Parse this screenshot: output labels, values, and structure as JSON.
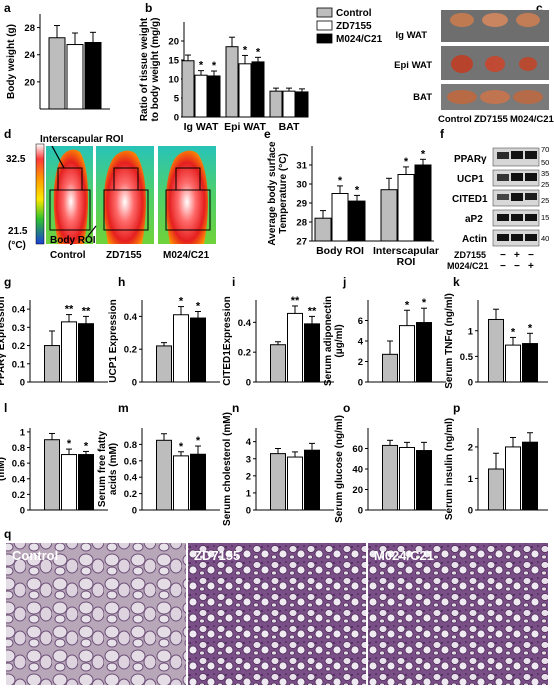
{
  "figure": {
    "panel_letters": [
      "a",
      "b",
      "c",
      "d",
      "e",
      "f",
      "g",
      "h",
      "i",
      "j",
      "k",
      "l",
      "m",
      "n",
      "o",
      "p",
      "q"
    ],
    "legend": [
      {
        "label": "Control",
        "color": "#bdbdbd"
      },
      {
        "label": "ZD7155",
        "color": "#ffffff"
      },
      {
        "label": "M024/C21",
        "color": "#000000"
      }
    ]
  },
  "panel_c": {
    "rows": [
      "Ig WAT",
      "Epi WAT",
      "BAT"
    ],
    "columns": [
      "Control",
      "ZD7155",
      "M024/C21"
    ]
  },
  "panel_d": {
    "labels": {
      "interscapular": "Interscapular ROI",
      "body": "Body ROI"
    },
    "scale_max": "32.5",
    "scale_min": "21.5",
    "scale_unit": "(°C)",
    "columns": [
      "Control",
      "ZD7155",
      "M024/C21"
    ]
  },
  "panel_f": {
    "bands": [
      "PPARγ",
      "UCP1",
      "CITED1",
      "aP2",
      "Actin"
    ],
    "markers": [
      "70",
      "50",
      "35",
      "25",
      "25",
      "15",
      "40"
    ],
    "conditions": [
      {
        "name": "ZD7155",
        "signs": [
          "−",
          "+",
          "−"
        ]
      },
      {
        "name": "M024/C21",
        "signs": [
          "−",
          "−",
          "+"
        ]
      }
    ]
  },
  "panel_q": {
    "labels": [
      "Control",
      "ZD7155",
      "M024/C21"
    ]
  },
  "chart_data": [
    {
      "id": "a",
      "type": "bar",
      "ylabel": "Body weight (g)",
      "ylim": [
        16,
        30
      ],
      "yticks": [
        20,
        24,
        28
      ],
      "series": [
        {
          "name": "Control",
          "values": [
            26.5
          ],
          "errors": [
            1.8
          ]
        },
        {
          "name": "ZD7155",
          "values": [
            25.5
          ],
          "errors": [
            1.7
          ]
        },
        {
          "name": "M024/C21",
          "values": [
            25.8
          ],
          "errors": [
            1.5
          ]
        }
      ],
      "stars": [
        "",
        "",
        ""
      ]
    },
    {
      "id": "b",
      "type": "bar",
      "ylabel": "Ratio of tissue weight to body weight (mg/g)",
      "ylim": [
        0,
        25
      ],
      "yticks": [
        0,
        5,
        10,
        15,
        20
      ],
      "categories": [
        "Ig WAT",
        "Epi WAT",
        "BAT"
      ],
      "series": [
        {
          "name": "Control",
          "values": [
            14.8,
            18.5,
            6.8
          ],
          "errors": [
            1.5,
            2.5,
            0.8
          ]
        },
        {
          "name": "ZD7155",
          "values": [
            11.0,
            14.0,
            6.8
          ],
          "errors": [
            1.2,
            2.2,
            0.8
          ]
        },
        {
          "name": "M024/C21",
          "values": [
            10.8,
            14.5,
            6.6
          ],
          "errors": [
            1.3,
            1.2,
            0.8
          ]
        }
      ],
      "stars": [
        [
          "",
          "*",
          "*"
        ],
        [
          "",
          "*",
          "*"
        ],
        [
          "",
          "",
          ""
        ]
      ]
    },
    {
      "id": "e",
      "type": "bar",
      "ylabel": "Average body surface Temperature (°C)",
      "ylim": [
        27,
        32
      ],
      "yticks": [
        27,
        28,
        29,
        30,
        31
      ],
      "categories": [
        "Body ROI",
        "Interscapular ROI"
      ],
      "series": [
        {
          "name": "Control",
          "values": [
            28.2,
            29.7
          ],
          "errors": [
            0.4,
            0.6
          ]
        },
        {
          "name": "ZD7155",
          "values": [
            29.5,
            30.5
          ],
          "errors": [
            0.4,
            0.4
          ]
        },
        {
          "name": "M024/C21",
          "values": [
            29.1,
            31.0
          ],
          "errors": [
            0.3,
            0.3
          ]
        }
      ],
      "stars": [
        [
          "",
          "*",
          "*"
        ],
        [
          "",
          "*",
          "*"
        ]
      ]
    },
    {
      "id": "g",
      "type": "bar",
      "ylabel": "PPARγ Expression",
      "ylim": [
        0,
        0.45
      ],
      "yticks": [
        0,
        0.1,
        0.2,
        0.3,
        0.4
      ],
      "series": [
        {
          "name": "Control",
          "values": [
            0.2
          ],
          "errors": [
            0.08
          ]
        },
        {
          "name": "ZD7155",
          "values": [
            0.33
          ],
          "errors": [
            0.04
          ]
        },
        {
          "name": "M024/C21",
          "values": [
            0.32
          ],
          "errors": [
            0.04
          ]
        }
      ],
      "stars": [
        "",
        "**",
        "**"
      ]
    },
    {
      "id": "h",
      "type": "bar",
      "ylabel": "UCP1 Expression",
      "ylim": [
        0,
        0.5
      ],
      "yticks": [
        0,
        0.2,
        0.4
      ],
      "series": [
        {
          "name": "Control",
          "values": [
            0.22
          ],
          "errors": [
            0.02
          ]
        },
        {
          "name": "ZD7155",
          "values": [
            0.41
          ],
          "errors": [
            0.05
          ]
        },
        {
          "name": "M024/C21",
          "values": [
            0.39
          ],
          "errors": [
            0.04
          ]
        }
      ],
      "stars": [
        "",
        "*",
        "*"
      ]
    },
    {
      "id": "i",
      "type": "bar",
      "ylabel": "CITED1Expression",
      "ylim": [
        0,
        0.55
      ],
      "yticks": [
        0,
        0.2,
        0.4
      ],
      "series": [
        {
          "name": "Control",
          "values": [
            0.25
          ],
          "errors": [
            0.02
          ]
        },
        {
          "name": "ZD7155",
          "values": [
            0.46
          ],
          "errors": [
            0.05
          ]
        },
        {
          "name": "M024/C21",
          "values": [
            0.39
          ],
          "errors": [
            0.05
          ]
        }
      ],
      "stars": [
        "",
        "**",
        "**"
      ]
    },
    {
      "id": "j",
      "type": "bar",
      "ylabel": "Serum adiponectin (μg/ml)",
      "ylim": [
        0,
        8
      ],
      "yticks": [
        0,
        2,
        4,
        6
      ],
      "series": [
        {
          "name": "Control",
          "values": [
            2.7
          ],
          "errors": [
            1.3
          ]
        },
        {
          "name": "ZD7155",
          "values": [
            5.5
          ],
          "errors": [
            1.5
          ]
        },
        {
          "name": "M024/C21",
          "values": [
            5.8
          ],
          "errors": [
            1.4
          ]
        }
      ],
      "stars": [
        "",
        "*",
        "*"
      ]
    },
    {
      "id": "k",
      "type": "bar",
      "ylabel": "Serum TNFα (ng/ml)",
      "ylim": [
        0,
        1.6
      ],
      "yticks": [
        0,
        0.5,
        1
      ],
      "series": [
        {
          "name": "Control",
          "values": [
            1.22
          ],
          "errors": [
            0.2
          ]
        },
        {
          "name": "ZD7155",
          "values": [
            0.72
          ],
          "errors": [
            0.15
          ]
        },
        {
          "name": "M024/C21",
          "values": [
            0.75
          ],
          "errors": [
            0.2
          ]
        }
      ],
      "stars": [
        "",
        "*",
        "*"
      ]
    },
    {
      "id": "l",
      "type": "bar",
      "ylabel": "Serum triglyceride (mM)",
      "ylim": [
        0,
        1.05
      ],
      "yticks": [
        0,
        0.2,
        0.4,
        0.6,
        0.8,
        1
      ],
      "series": [
        {
          "name": "Control",
          "values": [
            0.9
          ],
          "errors": [
            0.08
          ]
        },
        {
          "name": "ZD7155",
          "values": [
            0.71
          ],
          "errors": [
            0.07
          ]
        },
        {
          "name": "M024/C21",
          "values": [
            0.71
          ],
          "errors": [
            0.04
          ]
        }
      ],
      "stars": [
        "",
        "*",
        "*"
      ]
    },
    {
      "id": "m",
      "type": "bar",
      "ylabel": "Serum free fatty acids (mM)",
      "ylim": [
        0,
        1.0
      ],
      "yticks": [
        0,
        0.2,
        0.4,
        0.6,
        0.8
      ],
      "series": [
        {
          "name": "Control",
          "values": [
            0.85
          ],
          "errors": [
            0.08
          ]
        },
        {
          "name": "ZD7155",
          "values": [
            0.66
          ],
          "errors": [
            0.05
          ]
        },
        {
          "name": "M024/C21",
          "values": [
            0.68
          ],
          "errors": [
            0.1
          ]
        }
      ],
      "stars": [
        "",
        "*",
        "*"
      ]
    },
    {
      "id": "n",
      "type": "bar",
      "ylabel": "Serum cholesterol (mM)",
      "ylim": [
        0,
        4.8
      ],
      "yticks": [
        0,
        1,
        2,
        3,
        4
      ],
      "series": [
        {
          "name": "Control",
          "values": [
            3.3
          ],
          "errors": [
            0.3
          ]
        },
        {
          "name": "ZD7155",
          "values": [
            3.1
          ],
          "errors": [
            0.3
          ]
        },
        {
          "name": "M024/C21",
          "values": [
            3.5
          ],
          "errors": [
            0.4
          ]
        }
      ],
      "stars": [
        "",
        "",
        ""
      ]
    },
    {
      "id": "o",
      "type": "bar",
      "ylabel": "Serum glucose (ng/ml)",
      "ylim": [
        0,
        80
      ],
      "yticks": [
        0,
        20,
        40,
        60
      ],
      "series": [
        {
          "name": "Control",
          "values": [
            63
          ],
          "errors": [
            5
          ]
        },
        {
          "name": "ZD7155",
          "values": [
            61
          ],
          "errors": [
            5
          ]
        },
        {
          "name": "M024/C21",
          "values": [
            58
          ],
          "errors": [
            8
          ]
        }
      ],
      "stars": [
        "",
        "",
        ""
      ]
    },
    {
      "id": "p",
      "type": "bar",
      "ylabel": "Serum insulin (ng/ml)",
      "ylim": [
        0,
        2.6
      ],
      "yticks": [
        0,
        1,
        2
      ],
      "series": [
        {
          "name": "Control",
          "values": [
            1.3
          ],
          "errors": [
            0.5
          ]
        },
        {
          "name": "ZD7155",
          "values": [
            2.0
          ],
          "errors": [
            0.3
          ]
        },
        {
          "name": "M024/C21",
          "values": [
            2.15
          ],
          "errors": [
            0.3
          ]
        }
      ],
      "stars": [
        "",
        "",
        ""
      ]
    }
  ]
}
